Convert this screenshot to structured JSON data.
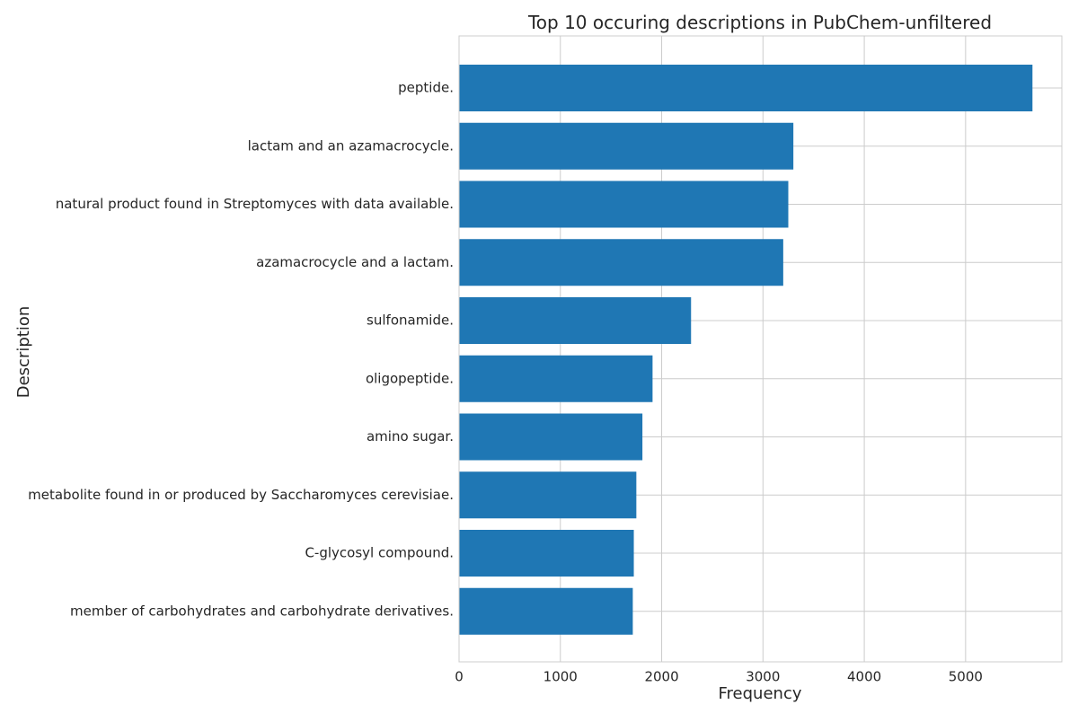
{
  "chart_data": {
    "type": "bar",
    "orientation": "horizontal",
    "title": "Top 10 occuring descriptions in PubChem-unfiltered",
    "xlabel": "Frequency",
    "ylabel": "Description",
    "xlim": [
      0,
      5950
    ],
    "xticks": [
      0,
      1000,
      2000,
      3000,
      4000,
      5000
    ],
    "grid": true,
    "bar_color": "#1f77b4",
    "grid_color": "#cccccc",
    "categories": [
      "peptide.",
      "lactam and an azamacrocycle.",
      "natural product found in Streptomyces with data available.",
      "azamacrocycle and a lactam.",
      "sulfonamide.",
      "oligopeptide.",
      "amino sugar.",
      "metabolite found in or produced by Saccharomyces cerevisiae.",
      "C-glycosyl compound.",
      "member of carbohydrates and carbohydrate derivatives."
    ],
    "values": [
      5660,
      3300,
      3250,
      3200,
      2290,
      1910,
      1810,
      1750,
      1725,
      1715
    ]
  }
}
